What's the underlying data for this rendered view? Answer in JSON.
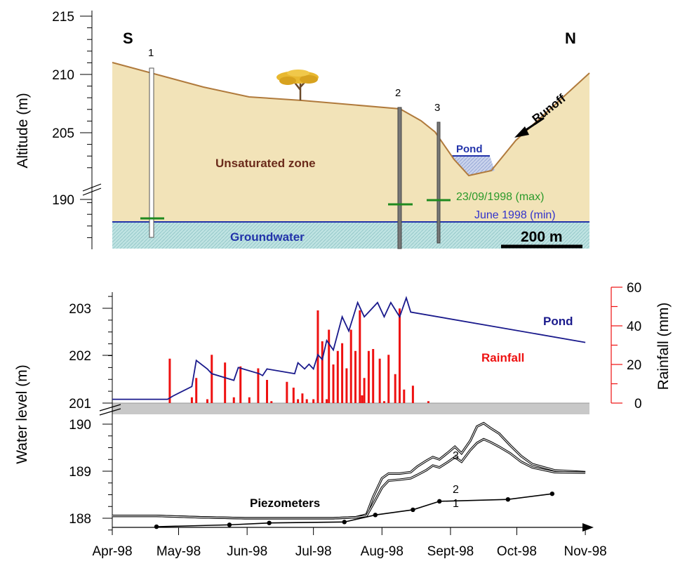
{
  "chart_data": [
    {
      "type": "diagram",
      "ylabel": "Altitude (m)",
      "yticks": [
        "215",
        "210",
        "205",
        "190"
      ],
      "labels": {
        "south": "S",
        "north": "N",
        "unsaturated": "Unsaturated zone",
        "groundwater": "Groundwater",
        "pond": "Pond",
        "runoff": "Runoff",
        "max_level": "23/09/1998 (max)",
        "min_level": "June 1998 (min)",
        "scale": "200 m",
        "piezometer_ids": [
          "1",
          "2",
          "3"
        ]
      },
      "colors": {
        "soil": "#f2e3b8",
        "ground_line": "#b07a3c",
        "groundwater": "#b8dedd",
        "water_line": "#2233aa",
        "max_marker": "#1f8a1f",
        "label_brown": "#6b2b1b",
        "label_green": "#2b9a2b",
        "label_blue": "#3333cc"
      }
    },
    {
      "type": "line",
      "ylabel": "Water level (m)",
      "y2label": "Rainfall (mm)",
      "x_ticks": [
        "Apr-98",
        "May-98",
        "Jun-98",
        "Jul-98",
        "Aug-98",
        "Sept-98",
        "Oct-98",
        "Nov-98"
      ],
      "upper_yticks": [
        "203",
        "202",
        "201"
      ],
      "lower_yticks": [
        "190",
        "189",
        "188"
      ],
      "rain_ticks": [
        "60",
        "40",
        "20",
        "0"
      ],
      "labels": {
        "pond": "Pond",
        "rainfall": "Rainfall",
        "piezometers": "Piezometers",
        "p1": "1",
        "p2": "2",
        "p3": "3"
      },
      "colors": {
        "pond": "#1a1a8c",
        "rainfall": "#ee1111",
        "piezometers": "#000000",
        "break_band": "#c8c8c8"
      },
      "series": [
        {
          "name": "Pond",
          "x": [
            0,
            25,
            27.5,
            36,
            38,
            43,
            45,
            55,
            57,
            66.5,
            68,
            70,
            82.5,
            84,
            87,
            89,
            91,
            93,
            95,
            97,
            100,
            104,
            107,
            111,
            114,
            120,
            123,
            126,
            130,
            133,
            135,
            214
          ],
          "y": [
            201.08,
            201.08,
            201.15,
            201.35,
            201.9,
            201.72,
            201.62,
            201.48,
            201.75,
            201.62,
            201.58,
            201.72,
            201.62,
            201.85,
            201.72,
            201.82,
            201.72,
            202.02,
            201.92,
            202.32,
            202.12,
            202.82,
            202.52,
            203.12,
            202.82,
            203.12,
            202.82,
            203.12,
            202.82,
            203.22,
            202.92,
            202.28
          ]
        },
        {
          "name": "Rainfall",
          "x": [
            26,
            36,
            38,
            43,
            45,
            51,
            55,
            58,
            62,
            66,
            70,
            72,
            79,
            82,
            84,
            86,
            88,
            91,
            93,
            95,
            97,
            98,
            100,
            102,
            104,
            106,
            108,
            110,
            112,
            113,
            114,
            116,
            118,
            121,
            123,
            125,
            128,
            130,
            132,
            136,
            143
          ],
          "y": [
            23,
            3,
            13,
            2,
            25,
            21,
            3,
            19,
            3,
            18,
            12,
            1,
            11,
            8,
            2,
            5,
            2,
            2,
            48,
            32,
            2,
            38,
            20,
            27,
            31,
            18,
            38,
            27,
            48,
            4,
            13,
            27,
            28,
            23,
            1,
            25,
            15,
            49,
            7,
            9,
            1
          ]
        },
        {
          "name": "3",
          "x": [
            0,
            20,
            40,
            60,
            80,
            100,
            110,
            115,
            118,
            122,
            125,
            130,
            135,
            138,
            142,
            145,
            148,
            152,
            155,
            158,
            162,
            165,
            168,
            171,
            175,
            180,
            185,
            190,
            200,
            214
          ],
          "y": [
            188.05,
            188.05,
            188.02,
            188.0,
            188.0,
            188.0,
            188.02,
            188.08,
            188.45,
            188.85,
            188.95,
            188.95,
            188.98,
            189.1,
            189.22,
            189.3,
            189.25,
            189.4,
            189.52,
            189.38,
            189.65,
            189.95,
            190.02,
            189.92,
            189.8,
            189.55,
            189.32,
            189.15,
            189.02,
            188.98
          ]
        },
        {
          "name": "2",
          "x": [
            0,
            20,
            40,
            60,
            80,
            100,
            110,
            115,
            118,
            122,
            125,
            130,
            135,
            138,
            142,
            145,
            148,
            152,
            155,
            158,
            162,
            165,
            168,
            171,
            175,
            180,
            185,
            190,
            200,
            214
          ],
          "y": [
            188.05,
            188.05,
            188.02,
            188.0,
            188.0,
            188.0,
            188.02,
            188.05,
            188.3,
            188.65,
            188.8,
            188.82,
            188.85,
            188.92,
            189.02,
            189.12,
            189.08,
            189.2,
            189.3,
            189.2,
            189.45,
            189.6,
            189.68,
            189.62,
            189.52,
            189.38,
            189.2,
            189.08,
            188.98,
            188.97
          ]
        },
        {
          "name": "1",
          "x": [
            20,
            53,
            71,
            105,
            119,
            136,
            148,
            179,
            199
          ],
          "y": [
            187.82,
            187.86,
            187.9,
            187.92,
            188.07,
            188.18,
            188.36,
            188.4,
            188.52
          ]
        }
      ]
    }
  ]
}
